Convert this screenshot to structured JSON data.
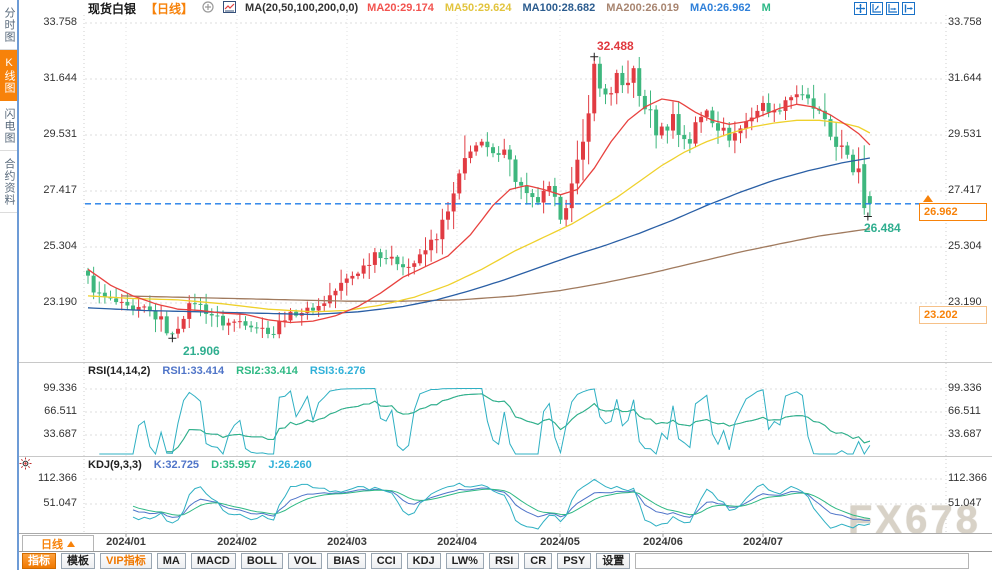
{
  "sidebar": {
    "items": [
      {
        "label": "分时图",
        "active": false
      },
      {
        "label": "K线图",
        "active": true
      },
      {
        "label": "闪电图",
        "active": false
      },
      {
        "label": "合约资料",
        "active": false
      }
    ]
  },
  "header": {
    "symbol": "现货白银",
    "period_tag": "【日线】",
    "ma_title": "MA(20,50,100,200,0,0)",
    "ma_values": [
      {
        "label": "MA20:29.174",
        "color": "#f2534f"
      },
      {
        "label": "MA50:29.624",
        "color": "#e2c43e"
      },
      {
        "label": "MA100:28.682",
        "color": "#2b5c8f"
      },
      {
        "label": "MA200:26.019",
        "color": "#a88570"
      },
      {
        "label": "MA0:26.962",
        "color": "#2f80d9"
      },
      {
        "label": "M",
        "color": "#2bb886"
      }
    ],
    "toolbar_icons": [
      "move-icon",
      "axis-zoom-icon",
      "axis-pan-icon",
      "export-icon"
    ]
  },
  "main_chart": {
    "y_ticks": [
      "33.758",
      "31.644",
      "29.531",
      "27.417",
      "25.304",
      "23.190"
    ],
    "x_labels": [
      "2024/01",
      "2024/02",
      "2024/03",
      "2024/04",
      "2024/05",
      "2024/06",
      "2024/07"
    ],
    "annotations": {
      "high": "32.488",
      "low": "21.906",
      "recent_low": "26.484",
      "last_price": "26.962",
      "lower_tag": "23.202"
    }
  },
  "rsi_pane": {
    "title": "RSI(14,14,2)",
    "values": [
      {
        "label": "RSI1:33.414",
        "color": "#4f74c8"
      },
      {
        "label": "RSI2:33.414",
        "color": "#2fb984"
      },
      {
        "label": "RSI3:6.276",
        "color": "#2fb0d8"
      }
    ],
    "y_ticks": [
      "99.336",
      "66.511",
      "33.687"
    ]
  },
  "kdj_pane": {
    "title": "KDJ(9,3,3)",
    "values": [
      {
        "label": "K:32.725",
        "color": "#4f74c8"
      },
      {
        "label": "D:35.957",
        "color": "#2fb984"
      },
      {
        "label": "J:26.260",
        "color": "#2fb0d8"
      }
    ],
    "y_ticks": [
      "112.366",
      "51.047"
    ]
  },
  "bottom": {
    "period_button": "日线",
    "tabs": [
      {
        "label": "指标",
        "active": true
      },
      {
        "label": "模板"
      },
      {
        "label": "VIP指标",
        "vip": true
      },
      {
        "label": "MA"
      },
      {
        "label": "MACD"
      },
      {
        "label": "BOLL"
      },
      {
        "label": "VOL"
      },
      {
        "label": "BIAS"
      },
      {
        "label": "CCI"
      },
      {
        "label": "KDJ"
      },
      {
        "label": "LW%"
      },
      {
        "label": "RSI"
      },
      {
        "label": "CR"
      },
      {
        "label": "PSY"
      },
      {
        "label": "设置"
      }
    ]
  },
  "watermark": "FX678",
  "chart_data": {
    "type": "candlestick",
    "instrument": "现货白银",
    "interval": "日线",
    "x_range": [
      "2024/01",
      "2024/07"
    ],
    "y_axis_ticks": [
      33.758,
      31.644,
      29.531,
      27.417,
      25.304,
      23.19
    ],
    "grid": true,
    "key_points": {
      "period_high": 32.488,
      "period_low": 21.906,
      "last_close": 26.962,
      "recent_low": 26.484
    },
    "colors": {
      "up": "#e13b42",
      "down": "#3eb77e",
      "grid": "#dcdcdc",
      "price_line": "#1f7ce8",
      "ma20": "#e8423f",
      "ma50": "#efd12c",
      "ma100": "#2a5fa5",
      "ma200": "#a07a5e",
      "indicator": "#2fb0c3",
      "indicator2": "#2fb984",
      "indicator3": "#4f74c9"
    },
    "close_waypoints": [
      [
        0,
        24.15
      ],
      [
        2,
        23.5
      ],
      [
        5,
        23.25
      ],
      [
        8,
        22.9
      ],
      [
        10,
        23.05
      ],
      [
        13,
        22.55
      ],
      [
        15,
        22.0
      ],
      [
        17,
        22.85
      ],
      [
        19,
        23.25
      ],
      [
        22,
        22.8
      ],
      [
        24,
        22.45
      ],
      [
        27,
        22.55
      ],
      [
        30,
        22.35
      ],
      [
        33,
        22.1
      ],
      [
        35,
        22.75
      ],
      [
        38,
        22.9
      ],
      [
        41,
        23.1
      ],
      [
        43,
        23.5
      ],
      [
        46,
        24.1
      ],
      [
        49,
        24.6
      ],
      [
        51,
        25.15
      ],
      [
        54,
        24.85
      ],
      [
        57,
        24.6
      ],
      [
        59,
        24.9
      ],
      [
        62,
        25.8
      ],
      [
        64,
        26.6
      ],
      [
        66,
        27.9
      ],
      [
        67,
        28.6
      ],
      [
        68,
        29.1
      ],
      [
        70,
        29.2
      ],
      [
        72,
        28.8
      ],
      [
        74,
        29.15
      ],
      [
        76,
        27.9
      ],
      [
        78,
        27.2
      ],
      [
        80,
        27.05
      ],
      [
        82,
        27.5
      ],
      [
        84,
        26.45
      ],
      [
        86,
        27.6
      ],
      [
        88,
        29.2
      ],
      [
        89,
        30.6
      ],
      [
        90,
        32.1
      ],
      [
        91,
        31.3
      ],
      [
        93,
        31.0
      ],
      [
        94,
        31.7
      ],
      [
        95,
        31.4
      ],
      [
        97,
        31.9
      ],
      [
        98,
        31.0
      ],
      [
        100,
        30.3
      ],
      [
        101,
        29.7
      ],
      [
        103,
        29.9
      ],
      [
        104,
        30.3
      ],
      [
        105,
        29.6
      ],
      [
        107,
        29.3
      ],
      [
        108,
        29.9
      ],
      [
        110,
        30.5
      ],
      [
        112,
        29.9
      ],
      [
        114,
        29.4
      ],
      [
        116,
        29.8
      ],
      [
        118,
        30.3
      ],
      [
        120,
        30.7
      ],
      [
        122,
        30.4
      ],
      [
        124,
        30.9
      ],
      [
        126,
        31.1
      ],
      [
        128,
        30.8
      ],
      [
        130,
        30.3
      ],
      [
        132,
        29.5
      ],
      [
        134,
        29.0
      ],
      [
        135,
        28.6
      ],
      [
        136,
        28.2
      ],
      [
        137,
        28.4
      ],
      [
        138,
        26.8
      ],
      [
        139,
        26.962
      ]
    ],
    "special_candles": {
      "15": {
        "low": 21.906
      },
      "67": {
        "high": 29.531
      },
      "90": {
        "high": 32.488
      },
      "96": {
        "high": 32.35
      },
      "138": {
        "open": 28.45,
        "close": 26.8,
        "low": 26.55
      },
      "139": {
        "open": 27.25,
        "close": 26.962,
        "high": 27.43,
        "low": 26.484
      }
    },
    "ma_lines": {
      "ma20": {
        "final": 29.174,
        "points": [
          [
            0,
            24.5
          ],
          [
            4,
            23.9
          ],
          [
            8,
            23.5
          ],
          [
            12,
            23.2
          ],
          [
            16,
            23.0
          ],
          [
            20,
            22.95
          ],
          [
            24,
            22.85
          ],
          [
            28,
            22.8
          ],
          [
            32,
            22.6
          ],
          [
            36,
            22.5
          ],
          [
            40,
            22.55
          ],
          [
            44,
            22.75
          ],
          [
            48,
            23.1
          ],
          [
            52,
            23.6
          ],
          [
            56,
            24.2
          ],
          [
            60,
            24.6
          ],
          [
            64,
            25.0
          ],
          [
            68,
            25.8
          ],
          [
            72,
            26.9
          ],
          [
            75,
            27.5
          ],
          [
            78,
            27.65
          ],
          [
            81,
            27.5
          ],
          [
            84,
            27.3
          ],
          [
            87,
            27.5
          ],
          [
            90,
            28.3
          ],
          [
            93,
            29.3
          ],
          [
            96,
            30.1
          ],
          [
            99,
            30.6
          ],
          [
            102,
            30.9
          ],
          [
            105,
            30.8
          ],
          [
            108,
            30.4
          ],
          [
            111,
            30.1
          ],
          [
            114,
            29.95
          ],
          [
            117,
            30.05
          ],
          [
            120,
            30.3
          ],
          [
            123,
            30.55
          ],
          [
            126,
            30.7
          ],
          [
            129,
            30.6
          ],
          [
            132,
            30.3
          ],
          [
            135,
            29.9
          ],
          [
            137,
            29.6
          ],
          [
            139,
            29.174
          ]
        ]
      },
      "ma50": {
        "final": 29.624,
        "points": [
          [
            0,
            23.5
          ],
          [
            8,
            23.4
          ],
          [
            16,
            23.35
          ],
          [
            24,
            23.2
          ],
          [
            32,
            23.0
          ],
          [
            40,
            22.9
          ],
          [
            46,
            22.95
          ],
          [
            52,
            23.15
          ],
          [
            58,
            23.45
          ],
          [
            64,
            23.9
          ],
          [
            70,
            24.5
          ],
          [
            76,
            25.2
          ],
          [
            82,
            25.8
          ],
          [
            86,
            26.2
          ],
          [
            90,
            26.7
          ],
          [
            94,
            27.2
          ],
          [
            98,
            27.8
          ],
          [
            102,
            28.4
          ],
          [
            106,
            28.9
          ],
          [
            110,
            29.3
          ],
          [
            114,
            29.6
          ],
          [
            118,
            29.85
          ],
          [
            122,
            30.0
          ],
          [
            126,
            30.1
          ],
          [
            130,
            30.1
          ],
          [
            134,
            30.0
          ],
          [
            137,
            29.85
          ],
          [
            139,
            29.624
          ]
        ]
      },
      "ma100": {
        "final": 28.682,
        "points": [
          [
            0,
            23.05
          ],
          [
            10,
            22.95
          ],
          [
            20,
            22.9
          ],
          [
            30,
            22.85
          ],
          [
            40,
            22.8
          ],
          [
            48,
            22.9
          ],
          [
            56,
            23.1
          ],
          [
            62,
            23.35
          ],
          [
            68,
            23.7
          ],
          [
            74,
            24.1
          ],
          [
            80,
            24.55
          ],
          [
            86,
            25.0
          ],
          [
            92,
            25.4
          ],
          [
            98,
            25.85
          ],
          [
            104,
            26.35
          ],
          [
            110,
            26.9
          ],
          [
            116,
            27.4
          ],
          [
            122,
            27.85
          ],
          [
            128,
            28.2
          ],
          [
            134,
            28.5
          ],
          [
            139,
            28.682
          ]
        ]
      },
      "ma200": {
        "final": 26.019,
        "points": [
          [
            6,
            23.5
          ],
          [
            16,
            23.45
          ],
          [
            26,
            23.4
          ],
          [
            36,
            23.35
          ],
          [
            46,
            23.3
          ],
          [
            56,
            23.3
          ],
          [
            66,
            23.35
          ],
          [
            76,
            23.5
          ],
          [
            84,
            23.7
          ],
          [
            92,
            24.0
          ],
          [
            100,
            24.35
          ],
          [
            108,
            24.75
          ],
          [
            116,
            25.15
          ],
          [
            124,
            25.5
          ],
          [
            130,
            25.75
          ],
          [
            135,
            25.9
          ],
          [
            139,
            26.019
          ]
        ]
      }
    },
    "indicators": {
      "rsi": {
        "params": [
          14,
          14,
          2
        ],
        "current": [
          33.414,
          33.414,
          6.276
        ],
        "scale_ticks": [
          99.336,
          66.511,
          33.687
        ]
      },
      "kdj": {
        "params": [
          9,
          3,
          3
        ],
        "current": [
          32.725,
          35.957,
          26.26
        ],
        "scale_ticks": [
          112.366,
          51.047
        ]
      }
    }
  }
}
